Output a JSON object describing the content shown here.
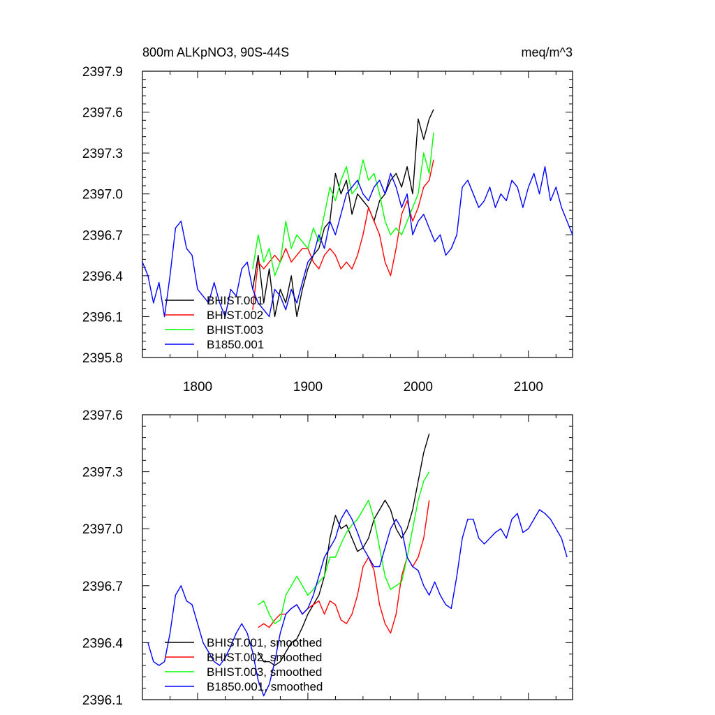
{
  "chart_data": [
    {
      "type": "line",
      "title": "800m ALKpNO3, 90S-44S",
      "units_label": "meq/m^3",
      "xlim": [
        1750,
        2140
      ],
      "ylim": [
        2395.8,
        2397.9
      ],
      "x_ticks": [
        1800,
        1900,
        2000,
        2100
      ],
      "x_tick_labels": [
        "1800",
        "1900",
        "2000",
        "2100"
      ],
      "y_ticks": [
        2395.8,
        2396.1,
        2396.4,
        2396.7,
        2397.0,
        2397.3,
        2397.6,
        2397.9
      ],
      "y_tick_labels": [
        "2395.8",
        "2396.1",
        "2396.4",
        "2396.7",
        "2397.0",
        "2397.3",
        "2397.6",
        "2397.9"
      ],
      "legend_position": "bottom-left",
      "series": [
        {
          "name": "BHIST.001",
          "color": "#000000",
          "x": [
            1850,
            1855,
            1860,
            1865,
            1870,
            1875,
            1880,
            1885,
            1890,
            1895,
            1900,
            1905,
            1910,
            1915,
            1920,
            1925,
            1930,
            1935,
            1940,
            1945,
            1950,
            1955,
            1960,
            1965,
            1970,
            1975,
            1980,
            1985,
            1990,
            1995,
            2000,
            2005,
            2010,
            2014
          ],
          "y": [
            2396.3,
            2396.55,
            2396.2,
            2396.45,
            2396.1,
            2396.3,
            2396.2,
            2396.4,
            2396.1,
            2396.3,
            2396.45,
            2396.55,
            2396.6,
            2396.75,
            2396.8,
            2397.15,
            2397.0,
            2397.1,
            2396.85,
            2397.0,
            2396.95,
            2396.9,
            2396.8,
            2396.95,
            2397.0,
            2397.1,
            2397.15,
            2397.05,
            2397.2,
            2397.0,
            2397.55,
            2397.4,
            2397.55,
            2397.62
          ]
        },
        {
          "name": "BHIST.002",
          "color": "#ff0000",
          "x": [
            1850,
            1855,
            1860,
            1865,
            1870,
            1875,
            1880,
            1885,
            1890,
            1895,
            1900,
            1905,
            1910,
            1915,
            1920,
            1925,
            1930,
            1935,
            1940,
            1945,
            1950,
            1955,
            1960,
            1965,
            1970,
            1975,
            1980,
            1985,
            1990,
            1995,
            2000,
            2005,
            2010,
            2014
          ],
          "y": [
            2396.15,
            2396.5,
            2396.45,
            2396.5,
            2396.55,
            2396.5,
            2396.6,
            2396.5,
            2396.55,
            2396.6,
            2396.6,
            2396.5,
            2396.45,
            2396.55,
            2396.6,
            2396.55,
            2396.45,
            2396.5,
            2396.45,
            2396.55,
            2396.7,
            2396.9,
            2396.8,
            2396.7,
            2396.5,
            2396.4,
            2396.6,
            2396.85,
            2396.95,
            2396.8,
            2396.9,
            2397.05,
            2397.1,
            2397.25
          ]
        },
        {
          "name": "BHIST.003",
          "color": "#00ff00",
          "x": [
            1850,
            1855,
            1860,
            1865,
            1870,
            1875,
            1880,
            1885,
            1890,
            1895,
            1900,
            1905,
            1910,
            1915,
            1920,
            1925,
            1930,
            1935,
            1940,
            1945,
            1950,
            1955,
            1960,
            1965,
            1970,
            1975,
            1980,
            1985,
            1990,
            1995,
            2000,
            2005,
            2010,
            2014
          ],
          "y": [
            2396.45,
            2396.7,
            2396.5,
            2396.6,
            2396.4,
            2396.5,
            2396.8,
            2396.6,
            2396.7,
            2396.65,
            2396.6,
            2396.75,
            2396.65,
            2396.85,
            2397.05,
            2396.95,
            2397.1,
            2397.2,
            2397.0,
            2397.05,
            2397.25,
            2397.1,
            2397.15,
            2397.0,
            2396.8,
            2396.7,
            2396.75,
            2396.7,
            2396.8,
            2396.9,
            2397.0,
            2397.3,
            2397.15,
            2397.45
          ]
        },
        {
          "name": "B1850.001",
          "color": "#0000ff",
          "x": [
            1750,
            1755,
            1760,
            1765,
            1770,
            1775,
            1780,
            1785,
            1790,
            1795,
            1800,
            1805,
            1810,
            1815,
            1820,
            1825,
            1830,
            1835,
            1840,
            1845,
            1850,
            1855,
            1860,
            1865,
            1870,
            1875,
            1880,
            1885,
            1890,
            1895,
            1900,
            1905,
            1910,
            1915,
            1920,
            1925,
            1930,
            1935,
            1940,
            1945,
            1950,
            1955,
            1960,
            1965,
            1970,
            1975,
            1980,
            1985,
            1990,
            1995,
            2000,
            2005,
            2010,
            2015,
            2020,
            2025,
            2030,
            2035,
            2040,
            2045,
            2050,
            2055,
            2060,
            2065,
            2070,
            2075,
            2080,
            2085,
            2090,
            2095,
            2100,
            2105,
            2110,
            2115,
            2120,
            2125,
            2130,
            2135,
            2140
          ],
          "y": [
            2396.5,
            2396.4,
            2396.2,
            2396.35,
            2396.1,
            2396.4,
            2396.75,
            2396.8,
            2396.6,
            2396.55,
            2396.3,
            2396.25,
            2396.2,
            2396.35,
            2396.2,
            2396.1,
            2396.3,
            2396.25,
            2396.45,
            2396.5,
            2396.3,
            2396.2,
            2396.15,
            2396.1,
            2396.3,
            2396.25,
            2396.15,
            2396.3,
            2396.2,
            2396.35,
            2396.5,
            2396.55,
            2396.7,
            2396.6,
            2396.8,
            2396.7,
            2396.85,
            2397.0,
            2397.05,
            2397.1,
            2397.0,
            2396.95,
            2397.05,
            2397.1,
            2397.0,
            2397.15,
            2397.05,
            2396.9,
            2397.0,
            2396.7,
            2396.8,
            2396.85,
            2396.75,
            2396.65,
            2396.7,
            2396.55,
            2396.6,
            2396.7,
            2397.05,
            2397.1,
            2397.0,
            2396.9,
            2396.95,
            2397.05,
            2396.9,
            2397.0,
            2396.95,
            2397.1,
            2397.05,
            2396.9,
            2397.05,
            2397.15,
            2397.0,
            2397.2,
            2396.95,
            2397.05,
            2396.9,
            2396.8,
            2396.7
          ]
        }
      ]
    },
    {
      "type": "line",
      "title": "",
      "xlim": [
        1750,
        2140
      ],
      "ylim": [
        2396.1,
        2397.6
      ],
      "x_ticks": [
        1800,
        1900,
        2000,
        2100
      ],
      "y_ticks": [
        2396.1,
        2396.4,
        2396.7,
        2397.0,
        2397.3,
        2397.6
      ],
      "y_tick_labels": [
        "2396.1",
        "2396.4",
        "2396.7",
        "2397.0",
        "2397.3",
        "2397.6"
      ],
      "legend_position": "bottom-left",
      "series": [
        {
          "name": "BHIST.001, smoothed",
          "color": "#000000",
          "x": [
            1855,
            1860,
            1865,
            1870,
            1875,
            1880,
            1885,
            1890,
            1895,
            1900,
            1905,
            1910,
            1915,
            1920,
            1925,
            1930,
            1935,
            1940,
            1945,
            1950,
            1955,
            1960,
            1965,
            1970,
            1975,
            1980,
            1985,
            1990,
            1995,
            2000,
            2005,
            2010
          ],
          "y": [
            2396.35,
            2396.3,
            2396.3,
            2396.28,
            2396.3,
            2396.35,
            2396.4,
            2396.42,
            2396.48,
            2396.55,
            2396.6,
            2396.65,
            2396.75,
            2396.95,
            2397.07,
            2397.0,
            2397.02,
            2396.95,
            2396.88,
            2396.9,
            2396.95,
            2397.05,
            2397.1,
            2397.15,
            2397.1,
            2397.0,
            2396.95,
            2397.0,
            2397.1,
            2397.25,
            2397.4,
            2397.5
          ]
        },
        {
          "name": "BHIST.002, smoothed",
          "color": "#ff0000",
          "x": [
            1855,
            1860,
            1865,
            1870,
            1875,
            1880,
            1885,
            1890,
            1895,
            1900,
            1905,
            1910,
            1915,
            1920,
            1925,
            1930,
            1935,
            1940,
            1945,
            1950,
            1955,
            1960,
            1965,
            1970,
            1975,
            1980,
            1985,
            1990,
            1995,
            2000,
            2005,
            2010
          ],
          "y": [
            2396.48,
            2396.5,
            2396.48,
            2396.52,
            2396.55,
            2396.55,
            2396.58,
            2396.6,
            2396.55,
            2396.58,
            2396.6,
            2396.62,
            2396.55,
            2396.62,
            2396.6,
            2396.52,
            2396.5,
            2396.55,
            2396.65,
            2396.8,
            2396.85,
            2396.78,
            2396.6,
            2396.5,
            2396.45,
            2396.55,
            2396.75,
            2396.85,
            2396.8,
            2396.85,
            2396.95,
            2397.15
          ]
        },
        {
          "name": "BHIST.003, smoothed",
          "color": "#00ff00",
          "x": [
            1855,
            1860,
            1865,
            1870,
            1875,
            1880,
            1885,
            1890,
            1895,
            1900,
            1905,
            1910,
            1915,
            1920,
            1925,
            1930,
            1935,
            1940,
            1945,
            1950,
            1955,
            1960,
            1965,
            1970,
            1975,
            1980,
            1985,
            1990,
            1995,
            2000,
            2005,
            2010
          ],
          "y": [
            2396.6,
            2396.62,
            2396.55,
            2396.5,
            2396.52,
            2396.65,
            2396.7,
            2396.75,
            2396.7,
            2396.65,
            2396.68,
            2396.72,
            2396.75,
            2396.85,
            2396.85,
            2396.92,
            2396.98,
            2397.02,
            2397.05,
            2397.1,
            2397.15,
            2397.05,
            2396.9,
            2396.75,
            2396.68,
            2396.7,
            2396.72,
            2396.85,
            2397.0,
            2397.15,
            2397.25,
            2397.3
          ]
        },
        {
          "name": "B1850.001, smoothed",
          "color": "#0000ff",
          "x": [
            1755,
            1760,
            1765,
            1770,
            1775,
            1780,
            1785,
            1790,
            1795,
            1800,
            1805,
            1810,
            1815,
            1820,
            1825,
            1830,
            1835,
            1840,
            1845,
            1850,
            1855,
            1860,
            1865,
            1870,
            1875,
            1880,
            1885,
            1890,
            1895,
            1900,
            1905,
            1910,
            1915,
            1920,
            1925,
            1930,
            1935,
            1940,
            1945,
            1950,
            1955,
            1960,
            1965,
            1970,
            1975,
            1980,
            1985,
            1990,
            1995,
            2000,
            2005,
            2010,
            2015,
            2020,
            2025,
            2030,
            2035,
            2040,
            2045,
            2050,
            2055,
            2060,
            2065,
            2070,
            2075,
            2080,
            2085,
            2090,
            2095,
            2100,
            2105,
            2110,
            2115,
            2120,
            2125,
            2130,
            2135
          ],
          "y": [
            2396.4,
            2396.3,
            2396.28,
            2396.3,
            2396.45,
            2396.65,
            2396.7,
            2396.62,
            2396.6,
            2396.5,
            2396.4,
            2396.35,
            2396.3,
            2396.28,
            2396.32,
            2396.38,
            2396.45,
            2396.5,
            2396.45,
            2396.35,
            2396.2,
            2396.12,
            2396.18,
            2396.3,
            2396.45,
            2396.55,
            2396.58,
            2396.6,
            2396.55,
            2396.58,
            2396.65,
            2396.75,
            2396.85,
            2396.9,
            2396.95,
            2397.05,
            2397.1,
            2397.05,
            2396.98,
            2396.9,
            2396.85,
            2396.8,
            2396.8,
            2396.9,
            2397.0,
            2397.05,
            2397.0,
            2396.85,
            2396.8,
            2396.78,
            2396.7,
            2396.65,
            2396.72,
            2396.65,
            2396.6,
            2396.58,
            2396.75,
            2396.95,
            2397.05,
            2397.05,
            2396.95,
            2396.92,
            2396.95,
            2396.98,
            2397.0,
            2396.95,
            2397.05,
            2397.08,
            2396.98,
            2397.0,
            2397.05,
            2397.1,
            2397.08,
            2397.05,
            2397.0,
            2396.95,
            2396.85
          ]
        }
      ]
    }
  ]
}
